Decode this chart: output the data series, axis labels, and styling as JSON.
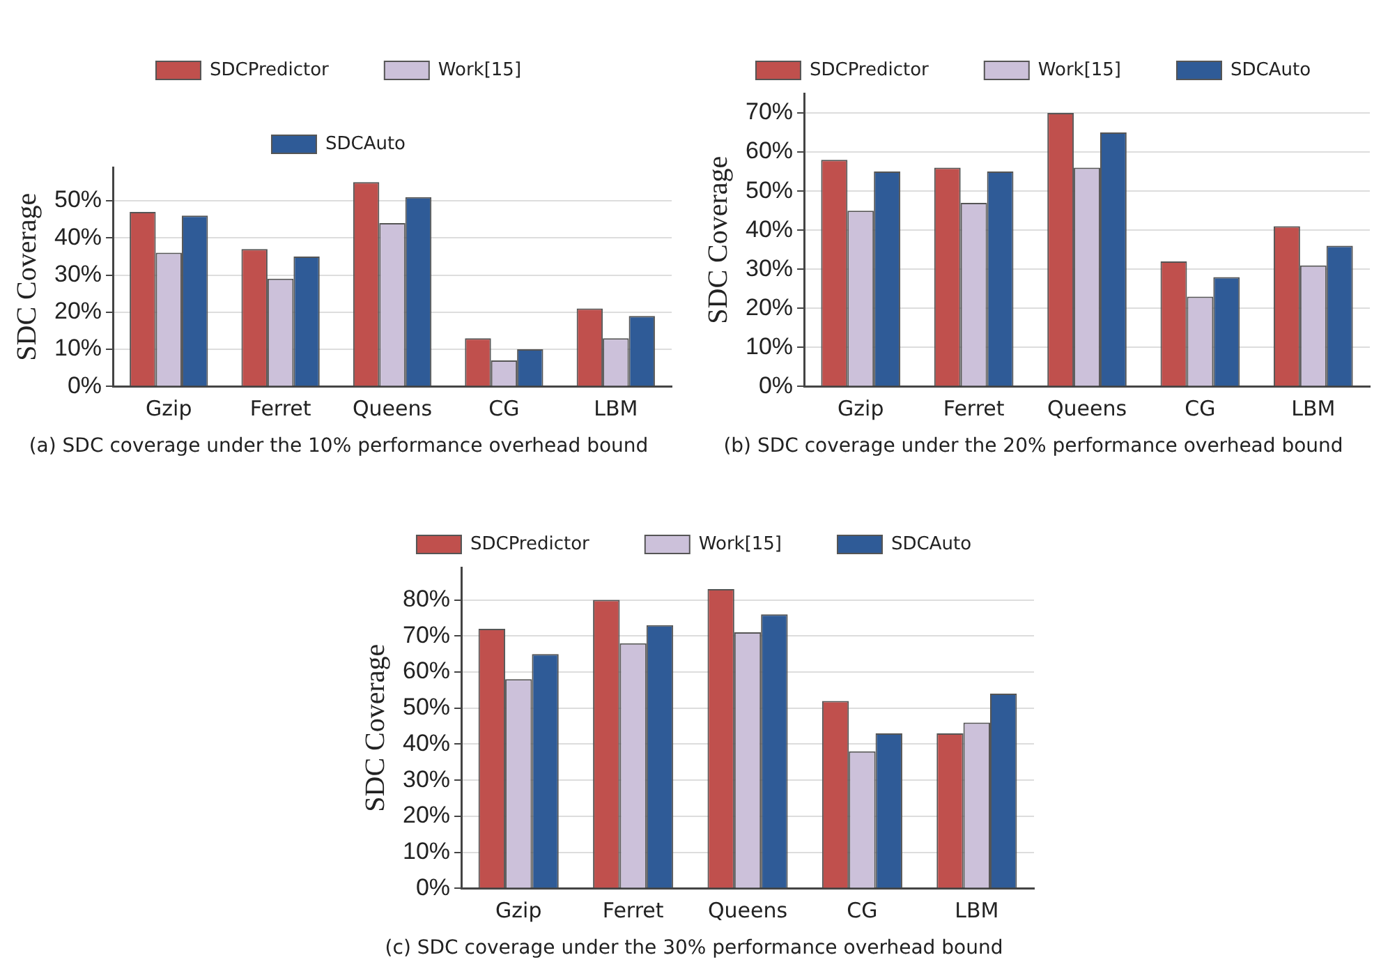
{
  "chart_data": [
    {
      "type": "bar",
      "title": "(a) SDC coverage under the 10% performance overhead bound",
      "ylabel": "SDC Coverage",
      "categories": [
        "Gzip",
        "Ferret",
        "Queens",
        "CG",
        "LBM"
      ],
      "series": [
        {
          "name": "SDCPredictor",
          "color": "#c0504d",
          "values": [
            47,
            37,
            55,
            13,
            21
          ]
        },
        {
          "name": "Work[15]",
          "color": "#ccc1da",
          "values": [
            36,
            29,
            44,
            7,
            13
          ]
        },
        {
          "name": "SDCAuto",
          "color": "#2f5b97",
          "values": [
            46,
            35,
            51,
            10,
            19
          ]
        }
      ],
      "ylim": [
        0,
        59
      ],
      "yticks": [
        {
          "value": 0,
          "label": "0%"
        },
        {
          "value": 10,
          "label": "10%"
        },
        {
          "value": 20,
          "label": "20%"
        },
        {
          "value": 30,
          "label": "30%"
        },
        {
          "value": 40,
          "label": "40%"
        },
        {
          "value": 50,
          "label": "50%"
        }
      ],
      "grid": "y",
      "legend": "top"
    },
    {
      "type": "bar",
      "title": "(b) SDC coverage under the 20% performance overhead bound",
      "ylabel": "SDC Coverage",
      "categories": [
        "Gzip",
        "Ferret",
        "Queens",
        "CG",
        "LBM"
      ],
      "series": [
        {
          "name": "SDCPredictor",
          "color": "#c0504d",
          "values": [
            58,
            56,
            70,
            32,
            41
          ]
        },
        {
          "name": "Work[15]",
          "color": "#ccc1da",
          "values": [
            45,
            47,
            56,
            23,
            31
          ]
        },
        {
          "name": "SDCAuto",
          "color": "#2f5b97",
          "values": [
            55,
            55,
            65,
            28,
            36
          ]
        }
      ],
      "ylim": [
        0,
        75
      ],
      "yticks": [
        {
          "value": 0,
          "label": "0%"
        },
        {
          "value": 10,
          "label": "10%"
        },
        {
          "value": 20,
          "label": "20%"
        },
        {
          "value": 30,
          "label": "30%"
        },
        {
          "value": 40,
          "label": "40%"
        },
        {
          "value": 50,
          "label": "50%"
        },
        {
          "value": 60,
          "label": "60%"
        },
        {
          "value": 70,
          "label": "70%"
        }
      ],
      "grid": "y",
      "legend": "top"
    },
    {
      "type": "bar",
      "title": "(c) SDC coverage under the 30% performance overhead bound",
      "ylabel": "SDC Coverage",
      "categories": [
        "Gzip",
        "Ferret",
        "Queens",
        "CG",
        "LBM"
      ],
      "series": [
        {
          "name": "SDCPredictor",
          "color": "#c0504d",
          "values": [
            72,
            80,
            83,
            52,
            43
          ]
        },
        {
          "name": "Work[15]",
          "color": "#ccc1da",
          "values": [
            58,
            68,
            71,
            38,
            46
          ]
        },
        {
          "name": "SDCAuto",
          "color": "#2f5b97",
          "values": [
            65,
            73,
            76,
            43,
            54
          ]
        }
      ],
      "ylim": [
        0,
        89
      ],
      "yticks": [
        {
          "value": 0,
          "label": "0%"
        },
        {
          "value": 10,
          "label": "10%"
        },
        {
          "value": 20,
          "label": "20%"
        },
        {
          "value": 30,
          "label": "30%"
        },
        {
          "value": 40,
          "label": "40%"
        },
        {
          "value": 50,
          "label": "50%"
        },
        {
          "value": 60,
          "label": "60%"
        },
        {
          "value": 70,
          "label": "70%"
        },
        {
          "value": 80,
          "label": "80%"
        }
      ],
      "grid": "y",
      "legend": "top"
    }
  ]
}
